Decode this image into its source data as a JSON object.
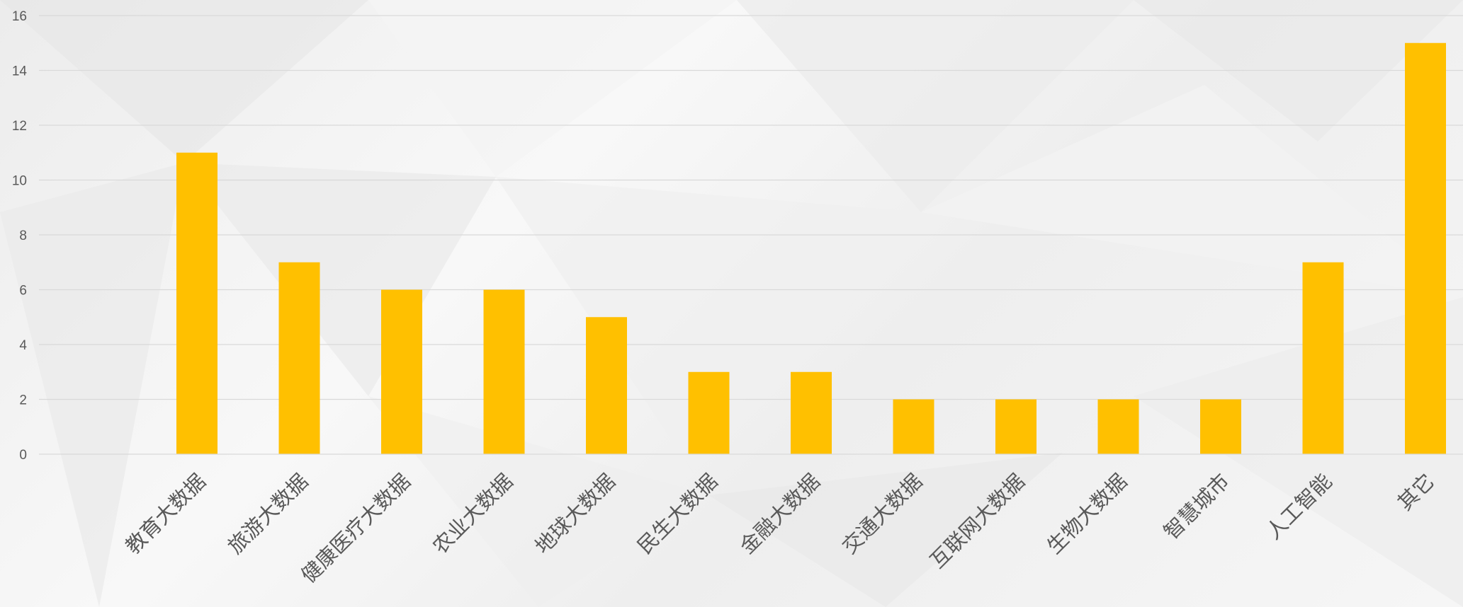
{
  "chart_data": {
    "type": "bar",
    "title": "",
    "xlabel": "",
    "ylabel": "",
    "ylim": [
      0,
      16
    ],
    "yticks": [
      0,
      2,
      4,
      6,
      8,
      10,
      12,
      14,
      16
    ],
    "grid": true,
    "legend": "none",
    "categories": [
      "教育大数据",
      "旅游大数据",
      "健康医疗大数据",
      "农业大数据",
      "地球大数据",
      "民生大数据",
      "金融大数据",
      "交通大数据",
      "互联网大数据",
      "生物大数据",
      "智慧城市",
      "人工智能",
      "其它"
    ],
    "values": [
      11,
      7,
      6,
      6,
      5,
      3,
      3,
      2,
      2,
      2,
      2,
      7,
      15
    ],
    "colors": {
      "bar": "#FFC000",
      "grid": "#D9D9D9",
      "text": "#595959"
    }
  }
}
